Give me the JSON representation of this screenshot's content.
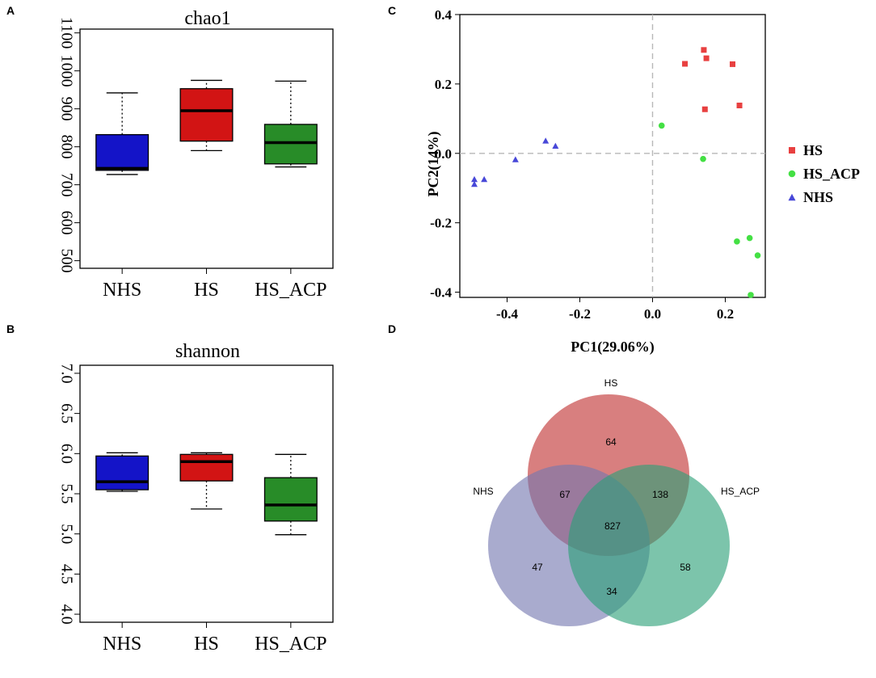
{
  "chart_data": [
    {
      "panel": "A",
      "type": "box",
      "title": "chao1",
      "categories": [
        "NHS",
        "HS",
        "HS_ACP"
      ],
      "colors": [
        "#1414c8",
        "#d21414",
        "#288c28"
      ],
      "ylim": [
        480,
        1110
      ],
      "yticks": [
        500,
        600,
        700,
        800,
        900,
        1000,
        1100
      ],
      "boxes": [
        {
          "name": "NHS",
          "min": 727,
          "q1": 738,
          "median": 743,
          "q3": 832,
          "max": 942
        },
        {
          "name": "HS",
          "min": 790,
          "q1": 815,
          "median": 895,
          "q3": 953,
          "max": 975
        },
        {
          "name": "HS_ACP",
          "min": 747,
          "q1": 755,
          "median": 811,
          "q3": 859,
          "max": 973
        }
      ]
    },
    {
      "panel": "B",
      "type": "box",
      "title": "shannon",
      "categories": [
        "NHS",
        "HS",
        "HS_ACP"
      ],
      "colors": [
        "#1414c8",
        "#d21414",
        "#288c28"
      ],
      "ylim": [
        3.9,
        7.1
      ],
      "yticks": [
        4.0,
        4.5,
        5.0,
        5.5,
        6.0,
        6.5,
        7.0
      ],
      "boxes": [
        {
          "name": "NHS",
          "min": 5.53,
          "q1": 5.55,
          "median": 5.65,
          "q3": 5.97,
          "max": 6.01
        },
        {
          "name": "HS",
          "min": 5.31,
          "q1": 5.66,
          "median": 5.9,
          "q3": 5.99,
          "max": 6.01
        },
        {
          "name": "HS_ACP",
          "min": 4.99,
          "q1": 5.16,
          "median": 5.36,
          "q3": 5.7,
          "max": 5.99
        }
      ]
    },
    {
      "panel": "C",
      "type": "scatter",
      "xlabel": "PC1(29.06%)",
      "ylabel": "PC2(14%)",
      "xlim": [
        -0.53,
        0.31
      ],
      "ylim": [
        -0.415,
        0.4
      ],
      "xticks": [
        -0.4,
        -0.2,
        0.0,
        0.2
      ],
      "yticks": [
        -0.4,
        -0.2,
        0.0,
        0.2,
        0.4
      ],
      "xtick_labels": [
        "-0.4",
        "-0.2",
        "0.0",
        "0.2"
      ],
      "ytick_labels": [
        "-0.4",
        "-0.2",
        "0.0",
        "0.2",
        "0.4"
      ],
      "legend_position": "right",
      "series": [
        {
          "name": "HS",
          "color": "#e84040",
          "marker": "square",
          "points": [
            [
              0.141,
              0.298
            ],
            [
              0.089,
              0.258
            ],
            [
              0.148,
              0.274
            ],
            [
              0.22,
              0.257
            ],
            [
              0.144,
              0.127
            ],
            [
              0.239,
              0.138
            ]
          ]
        },
        {
          "name": "HS_ACP",
          "color": "#44e044",
          "marker": "circle",
          "points": [
            [
              0.025,
              0.08
            ],
            [
              0.139,
              -0.016
            ],
            [
              0.232,
              -0.254
            ],
            [
              0.267,
              -0.244
            ],
            [
              0.289,
              -0.294
            ],
            [
              0.27,
              -0.408
            ]
          ]
        },
        {
          "name": "NHS",
          "color": "#4848d8",
          "marker": "triangle",
          "points": [
            [
              -0.294,
              0.037
            ],
            [
              -0.267,
              0.022
            ],
            [
              -0.377,
              -0.017
            ],
            [
              -0.49,
              -0.074
            ],
            [
              -0.463,
              -0.074
            ],
            [
              -0.49,
              -0.088
            ]
          ]
        }
      ]
    },
    {
      "panel": "D",
      "type": "venn",
      "sets": [
        "HS",
        "NHS",
        "HS_ACP"
      ],
      "colors": {
        "HS": "#c84848",
        "NHS": "#7478b0",
        "HS_ACP": "#2ca078"
      },
      "regions": {
        "HS_only": "64",
        "NHS_only": "47",
        "HS_ACP_only": "58",
        "HS_NHS": "67",
        "HS_HS_ACP": "138",
        "NHS_HS_ACP": "34",
        "all": "827"
      }
    }
  ]
}
